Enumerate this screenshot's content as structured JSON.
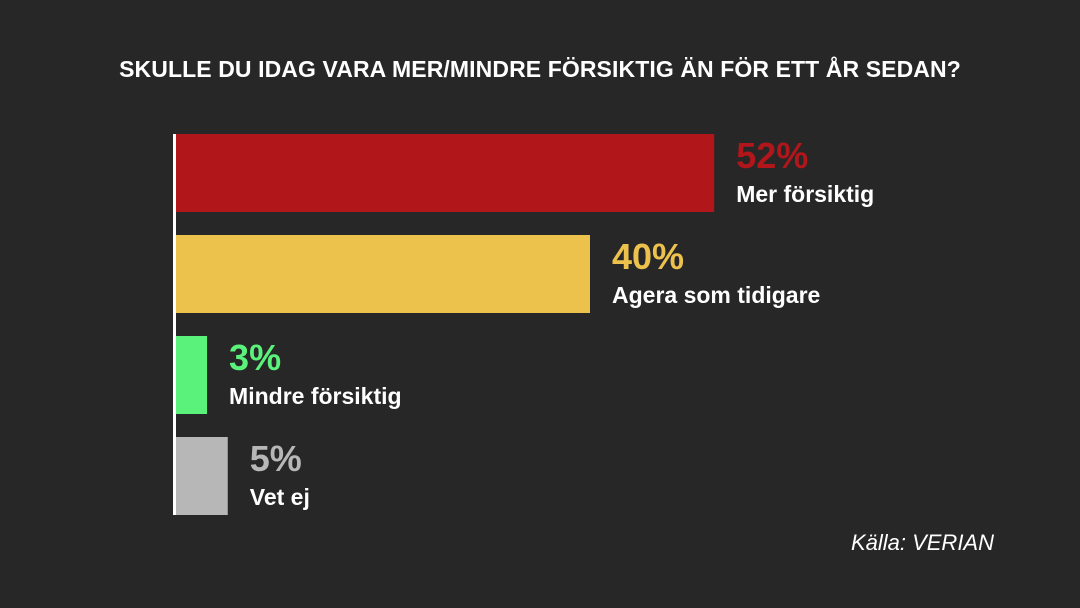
{
  "chart_data": {
    "type": "bar",
    "orientation": "horizontal",
    "title": "SKULLE DU IDAG VARA MER/MINDRE FÖRSIKTIG ÄN FÖR ETT ÅR SEDAN?",
    "categories": [
      "Mer försiktig",
      "Agera som tidigare",
      "Mindre försiktig",
      "Vet ej"
    ],
    "values": [
      52,
      40,
      3,
      5
    ],
    "value_labels": [
      "52%",
      "40%",
      "3%",
      "5%"
    ],
    "colors": [
      "#b0161a",
      "#ecc14c",
      "#5bf27c",
      "#b7b7b7"
    ],
    "xlim": [
      0,
      100
    ],
    "grid": false,
    "legend": "none"
  },
  "source": "Källa: VERIAN",
  "theme": {
    "background": "#272727",
    "axis_color": "#ffffff",
    "text_color": "#ffffff"
  }
}
